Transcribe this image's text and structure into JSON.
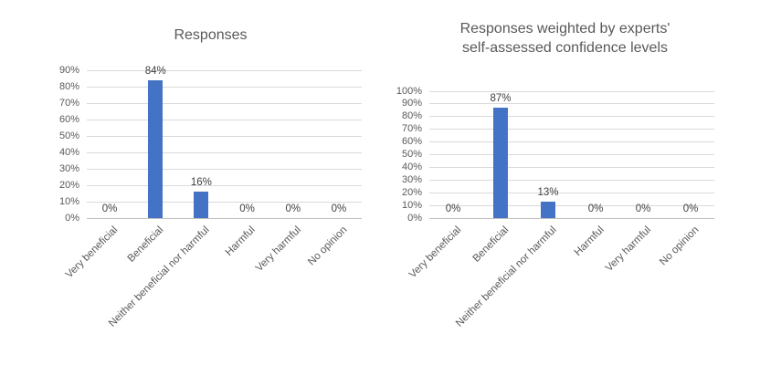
{
  "figure": {
    "background": "#FFFFFF"
  },
  "chart_data": [
    {
      "type": "bar",
      "title": "Responses",
      "title_lines": [
        "Responses"
      ],
      "categories": [
        "Very beneficial",
        "Beneficial",
        "Neither beneficial nor harmful",
        "Harmful",
        "Very harmful",
        "No opinion"
      ],
      "values": [
        0,
        84,
        16,
        0,
        0,
        0
      ],
      "data_labels": [
        "0%",
        "84%",
        "16%",
        "0%",
        "0%",
        "0%"
      ],
      "xlabel": "",
      "ylabel": "",
      "ylim": [
        0,
        90
      ],
      "ytick_step": 10,
      "ytick_labels": [
        "0%",
        "10%",
        "20%",
        "30%",
        "40%",
        "50%",
        "60%",
        "70%",
        "80%",
        "90%"
      ],
      "grid": true,
      "legend": "none",
      "bar_color": "#4472C4",
      "gridline_color": "#D9D9D9",
      "axis_line_color": "#BFBFBF",
      "tick_label_color": "#595959",
      "data_label_color": "#404040",
      "title_color": "#595959"
    },
    {
      "type": "bar",
      "title": "Responses weighted by experts' self-assessed confidence levels",
      "title_lines": [
        "Responses weighted by experts'",
        "self-assessed confidence levels"
      ],
      "categories": [
        "Very beneficial",
        "Beneficial",
        "Neither beneficial nor harmful",
        "Harmful",
        "Very harmful",
        "No opinion"
      ],
      "values": [
        0,
        87,
        13,
        0,
        0,
        0
      ],
      "data_labels": [
        "0%",
        "87%",
        "13%",
        "0%",
        "0%",
        "0%"
      ],
      "xlabel": "",
      "ylabel": "",
      "ylim": [
        0,
        100
      ],
      "ytick_step": 10,
      "ytick_labels": [
        "0%",
        "10%",
        "20%",
        "30%",
        "40%",
        "50%",
        "60%",
        "70%",
        "80%",
        "90%",
        "100%"
      ],
      "grid": true,
      "legend": "none",
      "bar_color": "#4472C4",
      "gridline_color": "#D9D9D9",
      "axis_line_color": "#BFBFBF",
      "tick_label_color": "#595959",
      "data_label_color": "#404040",
      "title_color": "#595959"
    }
  ]
}
